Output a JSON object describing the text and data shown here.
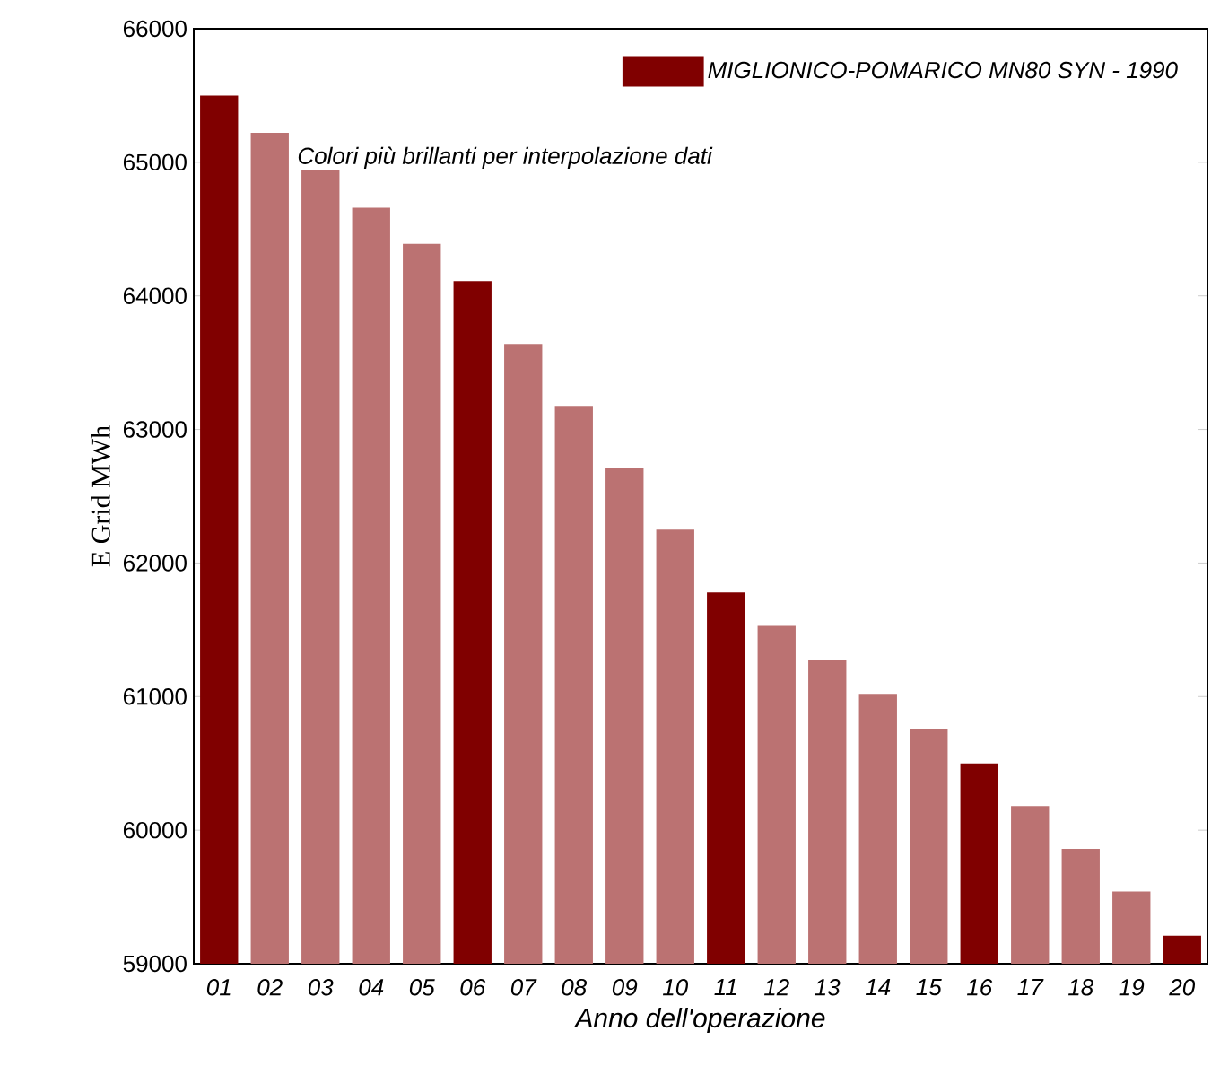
{
  "chart_data": {
    "type": "bar",
    "xlabel": "Anno dell'operazione",
    "ylabel": "E Grid MWh",
    "categories": [
      "01",
      "02",
      "03",
      "04",
      "05",
      "06",
      "07",
      "08",
      "09",
      "10",
      "11",
      "12",
      "13",
      "14",
      "15",
      "16",
      "17",
      "18",
      "19",
      "20"
    ],
    "series": [
      {
        "name": "MIGLIONICO-POMARICO MN80 SYN - 1990",
        "color": "#800000",
        "colors": [
          "#800000",
          "#bb7272",
          "#bb7272",
          "#bb7272",
          "#bb7272",
          "#800000",
          "#bb7272",
          "#bb7272",
          "#bb7272",
          "#bb7272",
          "#800000",
          "#bb7272",
          "#bb7272",
          "#bb7272",
          "#bb7272",
          "#800000",
          "#bb7272",
          "#bb7272",
          "#bb7272",
          "#800000"
        ],
        "values": [
          65500,
          65220,
          64940,
          64660,
          64390,
          64110,
          63640,
          63170,
          62710,
          62250,
          61780,
          61530,
          61270,
          61020,
          60760,
          60500,
          60180,
          59860,
          59540,
          59210
        ]
      }
    ],
    "ylim": [
      59000,
      66000
    ],
    "yticks": [
      59000,
      60000,
      61000,
      62000,
      63000,
      64000,
      65000,
      66000
    ],
    "legend": "top right",
    "annotations": [
      "Colori più brillanti per interpolazione dati"
    ]
  }
}
